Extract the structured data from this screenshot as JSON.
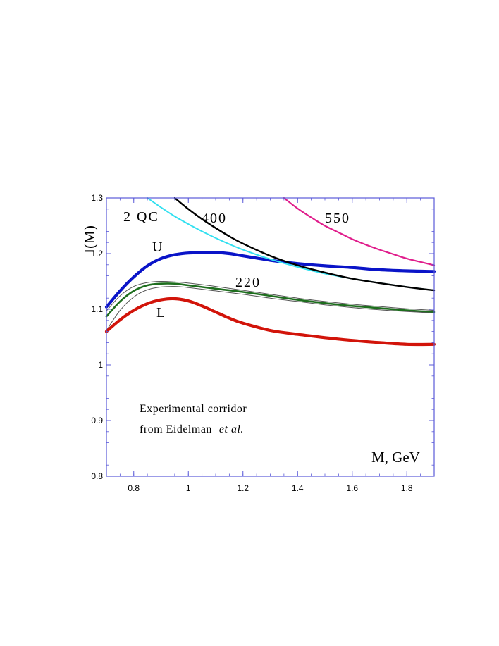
{
  "chart_data": {
    "type": "line",
    "title": "",
    "ylabel": "I(M)",
    "xlabel": "M, GeV",
    "xlim": [
      0.7,
      1.9
    ],
    "ylim": [
      0.8,
      1.3
    ],
    "grid": false,
    "x_ticks": [
      0.8,
      1,
      1.2,
      1.4,
      1.6,
      1.8
    ],
    "x_tick_labels": [
      "0.8",
      "1",
      "1.2",
      "1.4",
      "1.6",
      "1.8"
    ],
    "y_ticks": [
      0.8,
      0.9,
      1,
      1.1,
      1.2,
      1.3
    ],
    "y_tick_labels": [
      "0.8",
      "0.9",
      "1",
      "1.1",
      "1.2",
      "1.3"
    ],
    "curve_labels": {
      "qc": "2 QC",
      "c400": "400",
      "c550": "550",
      "u": "U",
      "c220": "220",
      "l": "L"
    },
    "annotation": {
      "line1": "Experimental  corridor",
      "line2_prefix": "from  Eidelman",
      "line2_italic": "et al."
    },
    "series": [
      {
        "key": "U",
        "color": "#0a14c8",
        "x": [
          0.7,
          0.75,
          0.8,
          0.85,
          0.9,
          0.95,
          1.0,
          1.05,
          1.1,
          1.15,
          1.2,
          1.3,
          1.4,
          1.5,
          1.6,
          1.7,
          1.8,
          1.9
        ],
        "y": [
          1.104,
          1.133,
          1.158,
          1.178,
          1.191,
          1.198,
          1.201,
          1.202,
          1.202,
          1.2,
          1.196,
          1.188,
          1.182,
          1.178,
          1.175,
          1.171,
          1.169,
          1.168
        ]
      },
      {
        "key": "220",
        "color": "#1e6e1e",
        "x": [
          0.7,
          0.75,
          0.8,
          0.85,
          0.9,
          0.95,
          1.0,
          1.1,
          1.2,
          1.3,
          1.4,
          1.5,
          1.6,
          1.7,
          1.8,
          1.9
        ],
        "y": [
          1.087,
          1.114,
          1.133,
          1.143,
          1.146,
          1.146,
          1.143,
          1.137,
          1.131,
          1.124,
          1.117,
          1.111,
          1.106,
          1.102,
          1.098,
          1.095
        ]
      },
      {
        "key": "220-upper",
        "color": "#555555",
        "x": [
          0.7,
          0.75,
          0.8,
          0.85,
          0.9,
          0.95,
          1.0,
          1.1,
          1.2,
          1.3,
          1.4,
          1.5,
          1.6,
          1.7,
          1.8,
          1.9
        ],
        "y": [
          1.097,
          1.124,
          1.141,
          1.148,
          1.15,
          1.149,
          1.147,
          1.141,
          1.134,
          1.127,
          1.12,
          1.114,
          1.109,
          1.105,
          1.101,
          1.098
        ]
      },
      {
        "key": "220-lower",
        "color": "#555555",
        "x": [
          0.7,
          0.75,
          0.8,
          0.85,
          0.9,
          0.95,
          1.0,
          1.1,
          1.2,
          1.3,
          1.4,
          1.5,
          1.6,
          1.7,
          1.8,
          1.9
        ],
        "y": [
          1.062,
          1.098,
          1.122,
          1.135,
          1.14,
          1.141,
          1.139,
          1.133,
          1.127,
          1.12,
          1.114,
          1.108,
          1.103,
          1.099,
          1.096,
          1.093
        ]
      },
      {
        "key": "L",
        "color": "#d2140a",
        "x": [
          0.7,
          0.75,
          0.8,
          0.85,
          0.9,
          0.95,
          1.0,
          1.05,
          1.1,
          1.15,
          1.2,
          1.3,
          1.4,
          1.5,
          1.6,
          1.7,
          1.8,
          1.9
        ],
        "y": [
          1.06,
          1.081,
          1.098,
          1.11,
          1.117,
          1.119,
          1.115,
          1.106,
          1.095,
          1.084,
          1.075,
          1.062,
          1.055,
          1.049,
          1.044,
          1.04,
          1.037,
          1.037
        ]
      },
      {
        "key": "2QC",
        "color": "#33e0f0",
        "x": [
          0.85,
          0.9,
          0.95,
          1.0,
          1.05,
          1.1,
          1.15,
          1.2,
          1.3,
          1.4,
          1.5,
          1.6,
          1.7,
          1.8,
          1.9
        ],
        "y": [
          1.3,
          1.283,
          1.267,
          1.253,
          1.24,
          1.228,
          1.217,
          1.207,
          1.19,
          1.176,
          1.164,
          1.155,
          1.147,
          1.14,
          1.134
        ]
      },
      {
        "key": "400",
        "color": "#000000",
        "x": [
          0.95,
          1.0,
          1.05,
          1.1,
          1.15,
          1.2,
          1.3,
          1.4,
          1.5,
          1.6,
          1.7,
          1.8,
          1.9
        ],
        "y": [
          1.3,
          1.28,
          1.262,
          1.246,
          1.231,
          1.218,
          1.196,
          1.179,
          1.166,
          1.155,
          1.147,
          1.14,
          1.134
        ]
      },
      {
        "key": "550",
        "color": "#e01e8c",
        "x": [
          1.35,
          1.4,
          1.45,
          1.5,
          1.55,
          1.6,
          1.65,
          1.7,
          1.75,
          1.8,
          1.85,
          1.9
        ],
        "y": [
          1.3,
          1.281,
          1.265,
          1.25,
          1.238,
          1.226,
          1.216,
          1.207,
          1.199,
          1.191,
          1.185,
          1.179
        ]
      }
    ]
  }
}
